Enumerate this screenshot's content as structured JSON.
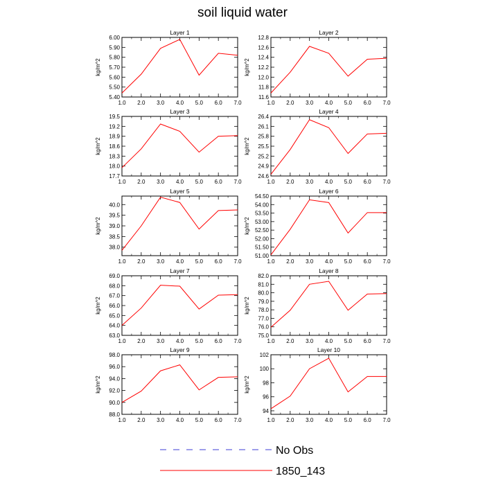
{
  "title": "soil liquid water",
  "colors": {
    "series": "#ff0000",
    "no_obs": "#3b3bd6",
    "axis": "#000000"
  },
  "legend": {
    "position": "bottom",
    "entries": [
      {
        "label": "No Obs",
        "style": "dashed",
        "color": "#3b3bd6"
      },
      {
        "label": "1850_143",
        "style": "solid",
        "color": "#ff0000"
      }
    ]
  },
  "chart_data": [
    {
      "type": "line",
      "title": "Layer 1",
      "ylabel": "kg/m^2",
      "xlim": [
        1,
        7
      ],
      "ylim": [
        5.4,
        6.0
      ],
      "xticks": [
        "1.0",
        "2.0",
        "3.0",
        "4.0",
        "5.0",
        "6.0",
        "7.0"
      ],
      "yticks": [
        "5.40",
        "5.50",
        "5.60",
        "5.70",
        "5.80",
        "5.90",
        "6.00"
      ],
      "series": [
        {
          "name": "1850_143",
          "x": [
            1,
            2,
            3,
            4,
            5,
            6,
            7
          ],
          "y": [
            5.44,
            5.63,
            5.89,
            5.98,
            5.62,
            5.84,
            5.82
          ]
        }
      ]
    },
    {
      "type": "line",
      "title": "Layer 2",
      "ylabel": "kg/m^2",
      "xlim": [
        1,
        7
      ],
      "ylim": [
        11.6,
        12.8
      ],
      "xticks": [
        "1.0",
        "2.0",
        "3.0",
        "4.0",
        "5.0",
        "6.0",
        "7.0"
      ],
      "yticks": [
        "11.6",
        "11.8",
        "12.0",
        "12.2",
        "12.4",
        "12.6",
        "12.8"
      ],
      "series": [
        {
          "name": "1850_143",
          "x": [
            1,
            2,
            3,
            4,
            5,
            6,
            7
          ],
          "y": [
            11.68,
            12.1,
            12.62,
            12.48,
            12.02,
            12.36,
            12.38
          ]
        }
      ]
    },
    {
      "type": "line",
      "title": "Layer 3",
      "ylabel": "kg/m^2",
      "xlim": [
        1,
        7
      ],
      "ylim": [
        17.7,
        19.5
      ],
      "xticks": [
        "1.0",
        "2.0",
        "3.0",
        "4.0",
        "5.0",
        "6.0",
        "7.0"
      ],
      "yticks": [
        "17.7",
        "18.0",
        "18.3",
        "18.6",
        "18.9",
        "19.2",
        "19.5"
      ],
      "series": [
        {
          "name": "1850_143",
          "x": [
            1,
            2,
            3,
            4,
            5,
            6,
            7
          ],
          "y": [
            17.95,
            18.52,
            19.27,
            19.05,
            18.42,
            18.9,
            18.92
          ]
        }
      ]
    },
    {
      "type": "line",
      "title": "Layer 4",
      "ylabel": "kg/m^2",
      "xlim": [
        1,
        7
      ],
      "ylim": [
        24.6,
        26.4
      ],
      "xticks": [
        "1.0",
        "2.0",
        "3.0",
        "4.0",
        "5.0",
        "6.0",
        "7.0"
      ],
      "yticks": [
        "24.6",
        "24.9",
        "25.2",
        "25.5",
        "25.8",
        "26.1",
        "26.4"
      ],
      "series": [
        {
          "name": "1850_143",
          "x": [
            1,
            2,
            3,
            4,
            5,
            6,
            7
          ],
          "y": [
            24.65,
            25.4,
            26.3,
            26.06,
            25.28,
            25.87,
            25.89
          ]
        }
      ]
    },
    {
      "type": "line",
      "title": "Layer 5",
      "ylabel": "kg/m^2",
      "xlim": [
        1,
        7
      ],
      "ylim": [
        37.6,
        40.4
      ],
      "xticks": [
        "1.0",
        "2.0",
        "3.0",
        "4.0",
        "5.0",
        "6.0",
        "7.0"
      ],
      "yticks": [
        "38.0",
        "38.5",
        "39.0",
        "39.5",
        "40.0"
      ],
      "series": [
        {
          "name": "1850_143",
          "x": [
            1,
            2,
            3,
            4,
            5,
            6,
            7
          ],
          "y": [
            37.85,
            39.0,
            40.35,
            40.1,
            38.85,
            39.72,
            39.75
          ]
        }
      ]
    },
    {
      "type": "line",
      "title": "Layer 6",
      "ylabel": "kg/m^2",
      "xlim": [
        1,
        7
      ],
      "ylim": [
        51.0,
        54.5
      ],
      "xticks": [
        "1.0",
        "2.0",
        "3.0",
        "4.0",
        "5.0",
        "6.0",
        "7.0"
      ],
      "yticks": [
        "51.00",
        "51.50",
        "52.00",
        "52.50",
        "53.00",
        "53.50",
        "54.00",
        "54.50"
      ],
      "series": [
        {
          "name": "1850_143",
          "x": [
            1,
            2,
            3,
            4,
            5,
            6,
            7
          ],
          "y": [
            51.05,
            52.55,
            54.28,
            54.12,
            52.33,
            53.53,
            53.53
          ]
        }
      ]
    },
    {
      "type": "line",
      "title": "Layer 7",
      "ylabel": "kg/m^2",
      "xlim": [
        1,
        7
      ],
      "ylim": [
        63.0,
        69.0
      ],
      "xticks": [
        "1.0",
        "2.0",
        "3.0",
        "4.0",
        "5.0",
        "6.0",
        "7.0"
      ],
      "yticks": [
        "63.0",
        "64.0",
        "65.0",
        "66.0",
        "67.0",
        "68.0",
        "69.0"
      ],
      "series": [
        {
          "name": "1850_143",
          "x": [
            1,
            2,
            3,
            4,
            5,
            6,
            7
          ],
          "y": [
            64.0,
            65.75,
            68.05,
            67.95,
            65.65,
            67.05,
            67.1
          ]
        }
      ]
    },
    {
      "type": "line",
      "title": "Layer 8",
      "ylabel": "kg/m^2",
      "xlim": [
        1,
        7
      ],
      "ylim": [
        75.0,
        82.0
      ],
      "xticks": [
        "1.0",
        "2.0",
        "3.0",
        "4.0",
        "5.0",
        "6.0",
        "7.0"
      ],
      "yticks": [
        "75.0",
        "76.0",
        "77.0",
        "78.0",
        "79.0",
        "80.0",
        "81.0",
        "82.0"
      ],
      "series": [
        {
          "name": "1850_143",
          "x": [
            1,
            2,
            3,
            4,
            5,
            6,
            7
          ],
          "y": [
            75.95,
            77.95,
            81.0,
            81.35,
            77.95,
            79.85,
            79.9
          ]
        }
      ]
    },
    {
      "type": "line",
      "title": "Layer 9",
      "ylabel": "kg/m^2",
      "xlim": [
        1,
        7
      ],
      "ylim": [
        88.0,
        98.0
      ],
      "xticks": [
        "1.0",
        "2.0",
        "3.0",
        "4.0",
        "5.0",
        "6.0",
        "7.0"
      ],
      "yticks": [
        "88.0",
        "90.0",
        "92.0",
        "94.0",
        "96.0",
        "98.0"
      ],
      "series": [
        {
          "name": "1850_143",
          "x": [
            1,
            2,
            3,
            4,
            5,
            6,
            7
          ],
          "y": [
            90.0,
            91.9,
            95.3,
            96.3,
            92.1,
            94.2,
            94.3
          ]
        }
      ]
    },
    {
      "type": "line",
      "title": "Layer 10",
      "ylabel": "kg/m^2",
      "xlim": [
        1,
        7
      ],
      "ylim": [
        93.5,
        102
      ],
      "xticks": [
        "1.0",
        "2.0",
        "3.0",
        "4.0",
        "5.0",
        "6.0",
        "7.0"
      ],
      "yticks": [
        "94",
        "96",
        "98",
        "100",
        "102"
      ],
      "series": [
        {
          "name": "1850_143",
          "x": [
            1,
            2,
            3,
            4,
            5,
            6,
            7
          ],
          "y": [
            94.3,
            96.1,
            100.0,
            101.5,
            96.7,
            98.9,
            98.9
          ]
        }
      ]
    }
  ]
}
